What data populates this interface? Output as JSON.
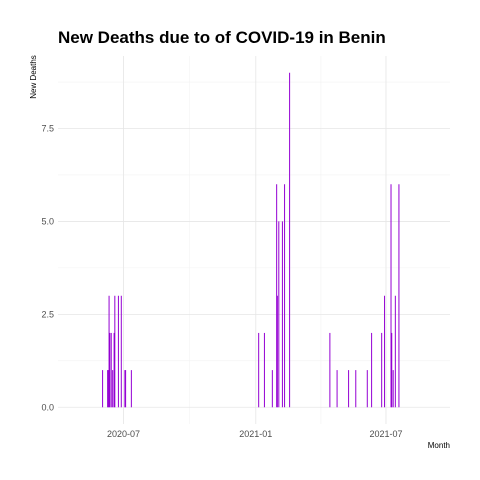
{
  "chart_data": {
    "type": "bar",
    "title": "New Deaths due to of COVID-19 in Benin",
    "xlabel": "Month",
    "ylabel": "New Deaths",
    "color": "#9400d3",
    "grid": true,
    "legend": "none",
    "x_ticks": [
      "2020-07",
      "2021-01",
      "2021-07"
    ],
    "x_tick_dates": [
      "2020-07-01",
      "2021-01-01",
      "2021-07-01"
    ],
    "y_ticks": [
      "0.0",
      "2.5",
      "5.0",
      "7.5"
    ],
    "y_tick_values": [
      0,
      2.5,
      5,
      7.5
    ],
    "xlim": [
      "2020-04-01",
      "2021-09-28"
    ],
    "ylim": [
      -0.45,
      9.45
    ],
    "points": [
      {
        "date": "2020-06-02",
        "value": 1
      },
      {
        "date": "2020-06-09",
        "value": 1
      },
      {
        "date": "2020-06-10",
        "value": 1
      },
      {
        "date": "2020-06-11",
        "value": 3
      },
      {
        "date": "2020-06-12",
        "value": 2
      },
      {
        "date": "2020-06-14",
        "value": 2
      },
      {
        "date": "2020-06-16",
        "value": 1
      },
      {
        "date": "2020-06-18",
        "value": 2
      },
      {
        "date": "2020-06-19",
        "value": 3
      },
      {
        "date": "2020-06-24",
        "value": 3
      },
      {
        "date": "2020-06-28",
        "value": 3
      },
      {
        "date": "2020-07-03",
        "value": 1
      },
      {
        "date": "2020-07-04",
        "value": 1
      },
      {
        "date": "2020-07-12",
        "value": 1
      },
      {
        "date": "2021-01-05",
        "value": 2
      },
      {
        "date": "2021-01-13",
        "value": 2
      },
      {
        "date": "2021-01-24",
        "value": 1
      },
      {
        "date": "2021-01-30",
        "value": 6
      },
      {
        "date": "2021-01-31",
        "value": 3
      },
      {
        "date": "2021-02-02",
        "value": 5
      },
      {
        "date": "2021-02-07",
        "value": 5
      },
      {
        "date": "2021-02-10",
        "value": 6
      },
      {
        "date": "2021-02-17",
        "value": 9
      },
      {
        "date": "2021-04-14",
        "value": 2
      },
      {
        "date": "2021-04-24",
        "value": 1
      },
      {
        "date": "2021-05-10",
        "value": 1
      },
      {
        "date": "2021-05-20",
        "value": 1
      },
      {
        "date": "2021-06-05",
        "value": 1
      },
      {
        "date": "2021-06-11",
        "value": 2
      },
      {
        "date": "2021-06-25",
        "value": 2
      },
      {
        "date": "2021-06-29",
        "value": 3
      },
      {
        "date": "2021-07-08",
        "value": 6
      },
      {
        "date": "2021-07-09",
        "value": 2
      },
      {
        "date": "2021-07-11",
        "value": 1
      },
      {
        "date": "2021-07-14",
        "value": 3
      },
      {
        "date": "2021-07-19",
        "value": 6
      }
    ]
  }
}
